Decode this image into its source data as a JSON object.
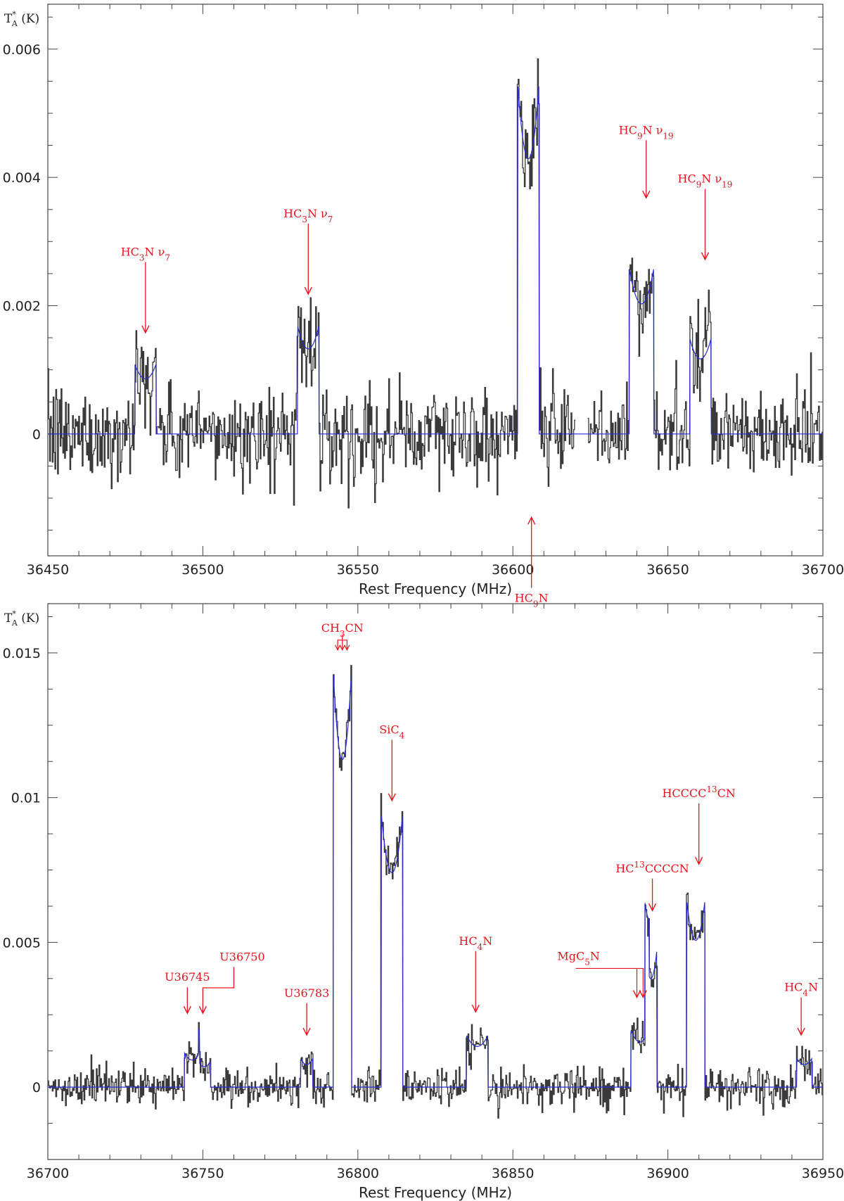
{
  "colors": {
    "observed": "#3a3a3a",
    "model": "#2a2ad8",
    "annotation": "#e8141c",
    "axis": "#444444"
  },
  "chart_data": [
    {
      "type": "line",
      "xlabel": "Rest Frequency (MHz)",
      "ylabel": {
        "main": "T",
        "sup": "*",
        "sub": "A",
        "unit": " (K)"
      },
      "xlim": [
        36450,
        36700
      ],
      "ylim": [
        -0.0019,
        0.0067
      ],
      "xticks": [
        36450,
        36500,
        36550,
        36600,
        36650,
        36700
      ],
      "yticks": [
        {
          "v": 0,
          "t": "0"
        },
        {
          "v": 0.002,
          "t": "0.002"
        },
        {
          "v": 0.004,
          "t": "0.004"
        },
        {
          "v": 0.006,
          "t": "0.006"
        }
      ],
      "noise": 0.0006,
      "gaps": [
        [
          36620,
          36624
        ]
      ],
      "lines": [
        {
          "c": 36481.5,
          "w": 3.5,
          "h": 0.0011
        },
        {
          "c": 36534,
          "w": 3.5,
          "h": 0.0017
        },
        {
          "c": 36605,
          "w": 3.5,
          "h": 0.0055
        },
        {
          "c": 36641.5,
          "w": 4,
          "h": 0.0026
        },
        {
          "c": 36660.5,
          "w": 3.5,
          "h": 0.0015
        }
      ],
      "annotations": [
        {
          "x": 36481.5,
          "y": 0.00158,
          "text": [
            {
              "t": "HC"
            },
            {
              "t": "3",
              "sub": true
            },
            {
              "t": "N  ν"
            },
            {
              "t": "7",
              "sub": true
            }
          ],
          "dir": "down",
          "len": 0.0011
        },
        {
          "x": 36534,
          "y": 0.00218,
          "text": [
            {
              "t": "HC"
            },
            {
              "t": "3",
              "sub": true
            },
            {
              "t": "N  ν"
            },
            {
              "t": "7",
              "sub": true
            }
          ],
          "dir": "down",
          "len": 0.0011
        },
        {
          "x": 36606,
          "y": -0.0013,
          "text": [
            {
              "t": "HC"
            },
            {
              "t": "9",
              "sub": true
            },
            {
              "t": "N"
            }
          ],
          "dir": "up",
          "len": 0.0011
        },
        {
          "x": 36643,
          "y": 0.00368,
          "text": [
            {
              "t": "HC"
            },
            {
              "t": "9",
              "sub": true
            },
            {
              "t": "N  ν"
            },
            {
              "t": "19",
              "sub": true
            }
          ],
          "dir": "down",
          "len": 0.0009
        },
        {
          "x": 36662,
          "y": 0.00272,
          "text": [
            {
              "t": "HC"
            },
            {
              "t": "9",
              "sub": true
            },
            {
              "t": "N  ν"
            },
            {
              "t": "19",
              "sub": true
            }
          ],
          "dir": "down",
          "len": 0.0011
        }
      ]
    },
    {
      "type": "line",
      "xlabel": "Rest Frequency (MHz)",
      "ylabel": {
        "main": "T",
        "sup": "*",
        "sub": "A",
        "unit": " (K)"
      },
      "xlim": [
        36700,
        36950
      ],
      "ylim": [
        -0.0025,
        0.0167
      ],
      "xticks": [
        36700,
        36750,
        36800,
        36850,
        36900,
        36950
      ],
      "yticks": [
        {
          "v": 0,
          "t": "0"
        },
        {
          "v": 0.005,
          "t": "0.005"
        },
        {
          "v": 0.01,
          "t": "0.01"
        },
        {
          "v": 0.015,
          "t": "0.015"
        }
      ],
      "noise": 0.00055,
      "gaps": [],
      "lines": [
        {
          "c": 36746.5,
          "w": 2.5,
          "h": 0.0012
        },
        {
          "c": 36750.5,
          "w": 2,
          "h": 0.0009
        },
        {
          "c": 36783.5,
          "w": 2,
          "h": 0.001
        },
        {
          "c": 36795,
          "w": 3,
          "h": 0.0145
        },
        {
          "c": 36811,
          "w": 3.5,
          "h": 0.0095
        },
        {
          "c": 36838.5,
          "w": 3.5,
          "h": 0.0018
        },
        {
          "c": 36891,
          "w": 3,
          "h": 0.002
        },
        {
          "c": 36894.5,
          "w": 2,
          "h": 0.0048
        },
        {
          "c": 36909,
          "w": 3,
          "h": 0.0065
        },
        {
          "c": 36944,
          "w": 2.5,
          "h": 0.001
        }
      ],
      "annotations": [
        {
          "x": 36745,
          "y": 0.00255,
          "text": [
            {
              "t": "U36745"
            }
          ],
          "dir": "down",
          "len": 0.0009
        },
        {
          "x": 36750,
          "y": 0.00255,
          "text": [
            {
              "t": "U36750"
            }
          ],
          "dir": "down-elbow",
          "elbowX": 36760,
          "len": 0.0016
        },
        {
          "x": 36783.5,
          "y": 0.0018,
          "text": [
            {
              "t": "U36783"
            }
          ],
          "dir": "down",
          "len": 0.0011
        },
        {
          "x": 36795,
          "y": 0.0151,
          "text": [
            {
              "t": "CH"
            },
            {
              "t": "3",
              "sub": true
            },
            {
              "t": "CN"
            }
          ],
          "dir": "triple",
          "len": 0.0004
        },
        {
          "x": 36811,
          "y": 0.0099,
          "text": [
            {
              "t": "SiC"
            },
            {
              "t": "4",
              "sub": true
            }
          ],
          "dir": "down",
          "len": 0.0021
        },
        {
          "x": 36838,
          "y": 0.0026,
          "text": [
            {
              "t": "HC"
            },
            {
              "t": "4",
              "sub": true
            },
            {
              "t": "N"
            }
          ],
          "dir": "down",
          "len": 0.0021
        },
        {
          "x": 36890,
          "y": 0.0031,
          "text": [
            {
              "t": "MgC"
            },
            {
              "t": "5",
              "sub": true
            },
            {
              "t": "N"
            }
          ],
          "dir": "double-elbow",
          "elbowX": 36878,
          "len": 0.001
        },
        {
          "x": 36895,
          "y": 0.0061,
          "text": [
            {
              "t": "HC"
            },
            {
              "t": "13",
              "sup": true
            },
            {
              "t": "CCCCN"
            }
          ],
          "dir": "down",
          "len": 0.0011
        },
        {
          "x": 36910,
          "y": 0.0077,
          "text": [
            {
              "t": "HCCCC"
            },
            {
              "t": "13",
              "sup": true
            },
            {
              "t": "CN"
            }
          ],
          "dir": "down",
          "len": 0.0021
        },
        {
          "x": 36943,
          "y": 0.0018,
          "text": [
            {
              "t": "HC"
            },
            {
              "t": "4",
              "sub": true
            },
            {
              "t": "N"
            }
          ],
          "dir": "down",
          "len": 0.0013
        }
      ]
    }
  ]
}
